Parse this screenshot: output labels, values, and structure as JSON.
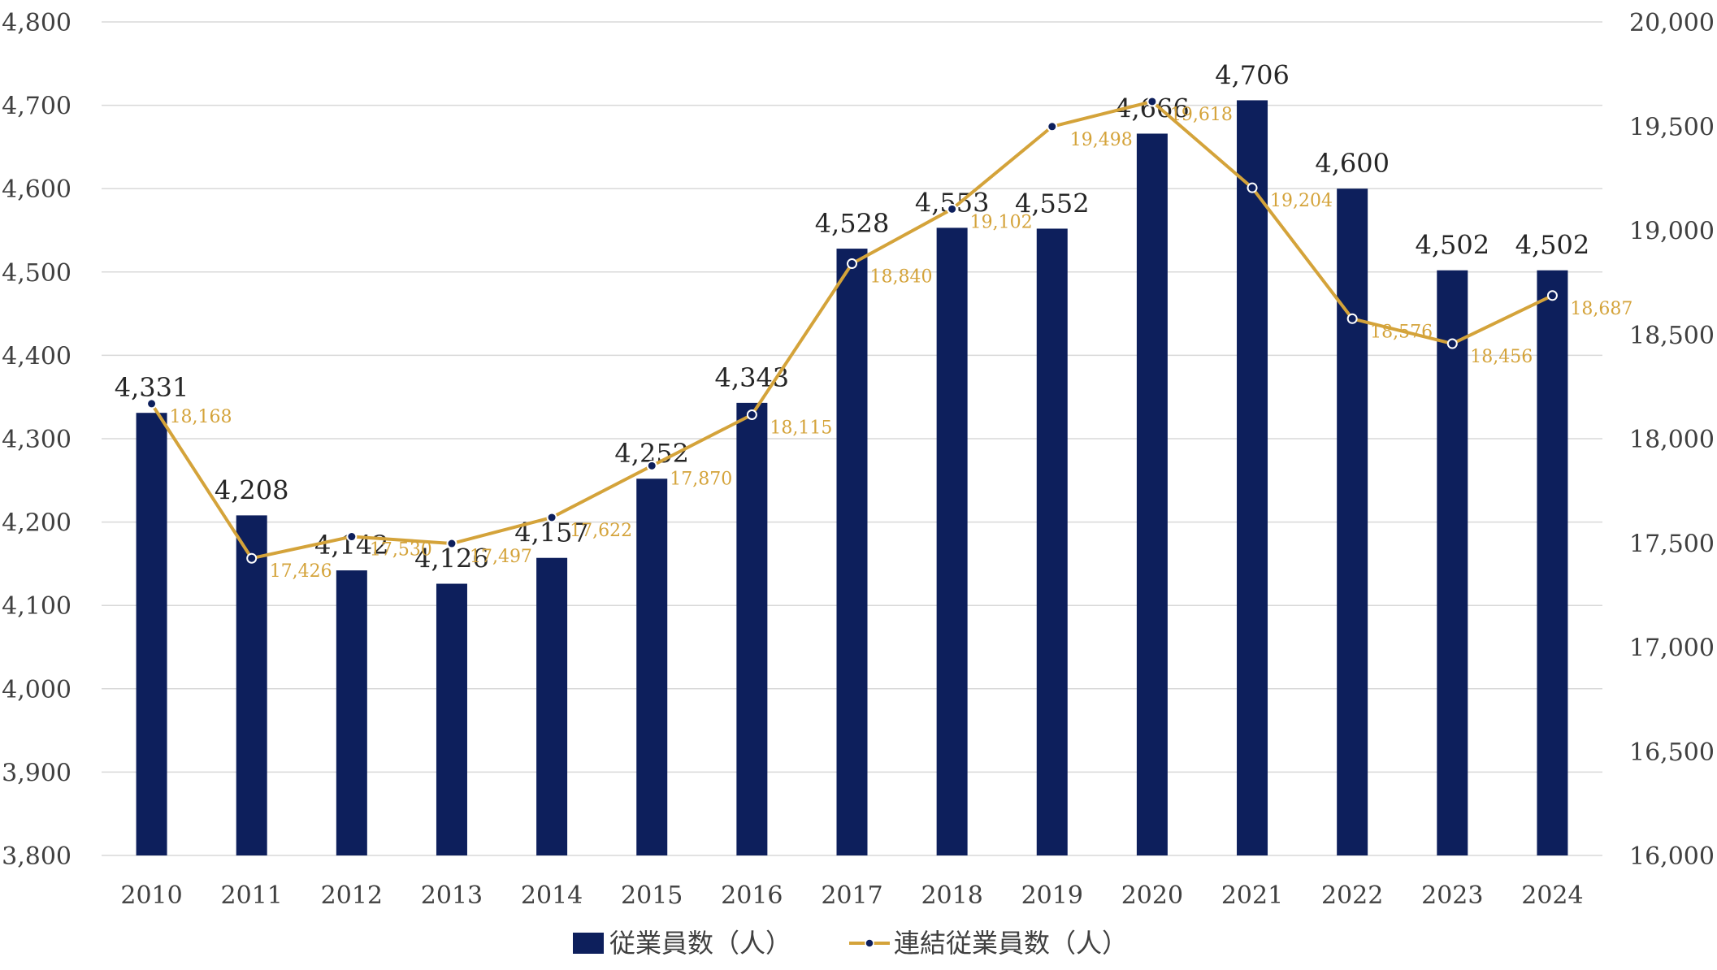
{
  "chart_data": {
    "type": "bar",
    "title": "",
    "categories": [
      "2010",
      "2011",
      "2012",
      "2013",
      "2014",
      "2015",
      "2016",
      "2017",
      "2018",
      "2019",
      "2020",
      "2021",
      "2022",
      "2023",
      "2024"
    ],
    "series": [
      {
        "name": "従業員数（人）",
        "type": "bar",
        "axis": "left",
        "color": "#0d1f5c",
        "values": [
          4331,
          4208,
          4142,
          4126,
          4157,
          4252,
          4343,
          4528,
          4553,
          4552,
          4666,
          4706,
          4600,
          4502,
          4502
        ],
        "labels": [
          "4,331",
          "4,208",
          "4,142",
          "4,126",
          "4,157",
          "4,252",
          "4,343",
          "4,528",
          "4,553",
          "4,552",
          "4,666",
          "4,706",
          "4,600",
          "4,502",
          "4,502"
        ]
      },
      {
        "name": "連結従業員数（人）",
        "type": "line",
        "axis": "right",
        "color": "#d4a33a",
        "values": [
          18168,
          17426,
          17530,
          17497,
          17622,
          17870,
          18115,
          18840,
          19102,
          19498,
          19618,
          19204,
          18576,
          18456,
          18687
        ],
        "labels": [
          "18,168",
          "17,426",
          "17,530",
          "17,497",
          "17,622",
          "17,870",
          "18,115",
          "18,840",
          "19,102",
          "19,498",
          "19,618",
          "19,204",
          "18,576",
          "18,456",
          "18,687"
        ]
      }
    ],
    "y_left": {
      "range": [
        3800,
        4800
      ],
      "ticks": [
        "4,800",
        "4,700",
        "4,600",
        "4,500",
        "4,400",
        "4,300",
        "4,200",
        "4,100",
        "4,000",
        "3,900",
        "3,800"
      ]
    },
    "y_right": {
      "range": [
        16000,
        20000
      ],
      "ticks": [
        "20,000",
        "19,500",
        "19,000",
        "18,500",
        "18,000",
        "17,500",
        "17,000",
        "16,500",
        "16,000"
      ]
    },
    "grid": true,
    "legend_position": "bottom"
  }
}
